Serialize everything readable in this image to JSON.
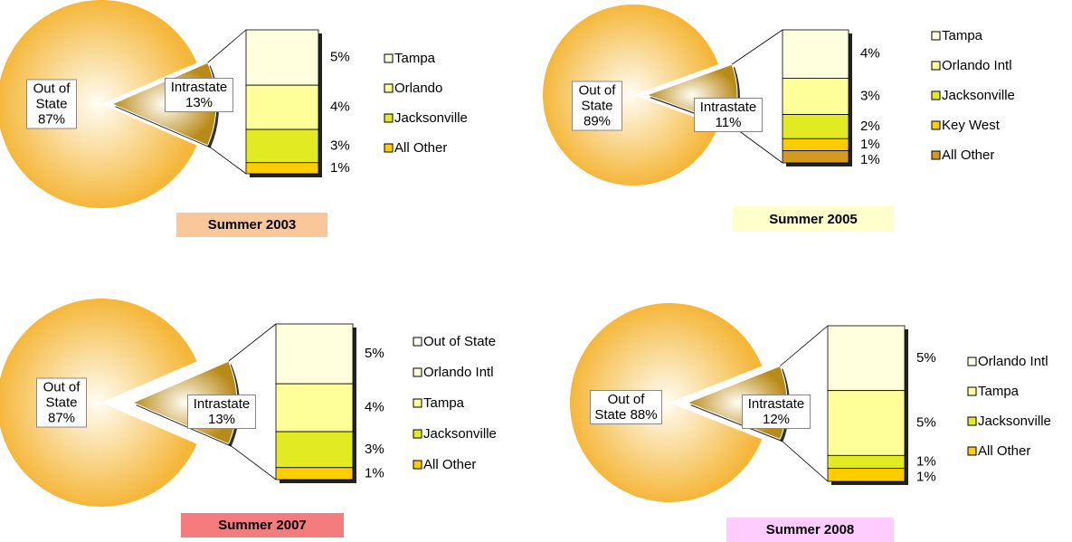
{
  "chart_data": [
    {
      "type": "pie",
      "title": "Summer 2003",
      "title_color": "#f9c79a",
      "categories": [
        "Out of State",
        "Intrastate"
      ],
      "values": [
        87,
        13
      ],
      "value_labels": [
        "87%",
        "13%"
      ],
      "colors": [
        "#f5b73a",
        "#b88a18"
      ],
      "breakdown": {
        "values": [
          5,
          4,
          3,
          1
        ],
        "value_labels": [
          "5%",
          "4%",
          "3%",
          "1%"
        ],
        "colors": [
          "#ffffdd",
          "#ffff99",
          "#e2ea22",
          "#ffcc00"
        ]
      },
      "legend": [
        {
          "name": "Tampa",
          "color": "#ffffdd"
        },
        {
          "name": "Orlando",
          "color": "#ffff99"
        },
        {
          "name": "Jacksonville",
          "color": "#e2ea22"
        },
        {
          "name": "All Other",
          "color": "#ffcc00"
        }
      ]
    },
    {
      "type": "pie",
      "title": "Summer 2005",
      "title_color": "#ffffcc",
      "categories": [
        "Out of State",
        "Intrastate"
      ],
      "values": [
        89,
        11
      ],
      "value_labels": [
        "89%",
        "11%"
      ],
      "colors": [
        "#f5b73a",
        "#b88a18"
      ],
      "breakdown": {
        "values": [
          4,
          3,
          2,
          1,
          1
        ],
        "value_labels": [
          "4%",
          "3%",
          "2%",
          "1%",
          "1%"
        ],
        "colors": [
          "#ffffdd",
          "#ffff99",
          "#e2ea22",
          "#ffcc00",
          "#d49a20"
        ]
      },
      "legend": [
        {
          "name": "Tampa",
          "color": "#ffffdd"
        },
        {
          "name": "Orlando Intl",
          "color": "#ffff99"
        },
        {
          "name": "Jacksonville",
          "color": "#e2ea22"
        },
        {
          "name": "Key West",
          "color": "#ffcc00"
        },
        {
          "name": "All Other",
          "color": "#d49a20"
        }
      ]
    },
    {
      "type": "pie",
      "title": "Summer 2007",
      "title_color": "#f47c7c",
      "categories": [
        "Out of State",
        "Intrastate"
      ],
      "values": [
        87,
        13
      ],
      "value_labels": [
        "87%",
        "13%"
      ],
      "colors": [
        "#f5b73a",
        "#b88a18"
      ],
      "breakdown": {
        "values": [
          5,
          4,
          3,
          1
        ],
        "value_labels": [
          "5%",
          "4%",
          "3%",
          "1%"
        ],
        "colors": [
          "#ffffdd",
          "#ffff99",
          "#e2ea22",
          "#ffcc00"
        ]
      },
      "legend": [
        {
          "name": "Out of State",
          "color": "#fffff4"
        },
        {
          "name": "Orlando Intl",
          "color": "#ffffdd"
        },
        {
          "name": "Tampa",
          "color": "#ffff99"
        },
        {
          "name": "Jacksonville",
          "color": "#e2ea22"
        },
        {
          "name": "All Other",
          "color": "#ffcc00"
        }
      ]
    },
    {
      "type": "pie",
      "title": "Summer 2008",
      "title_color": "#ffccff",
      "categories": [
        "Out of State",
        "Intrastate"
      ],
      "values": [
        88,
        12
      ],
      "value_labels": [
        "88%",
        "12%"
      ],
      "colors": [
        "#f5b73a",
        "#b88a18"
      ],
      "breakdown": {
        "values": [
          5,
          5,
          1,
          1
        ],
        "value_labels": [
          "5%",
          "5%",
          "1%",
          "1%"
        ],
        "colors": [
          "#ffffdd",
          "#ffff99",
          "#e2ea22",
          "#ffcc00"
        ]
      },
      "legend": [
        {
          "name": "Orlando Intl",
          "color": "#ffffdd"
        },
        {
          "name": "Tampa",
          "color": "#ffff99"
        },
        {
          "name": "Jacksonville",
          "color": "#e2ea22"
        },
        {
          "name": "All Other",
          "color": "#ffcc00"
        }
      ]
    }
  ]
}
